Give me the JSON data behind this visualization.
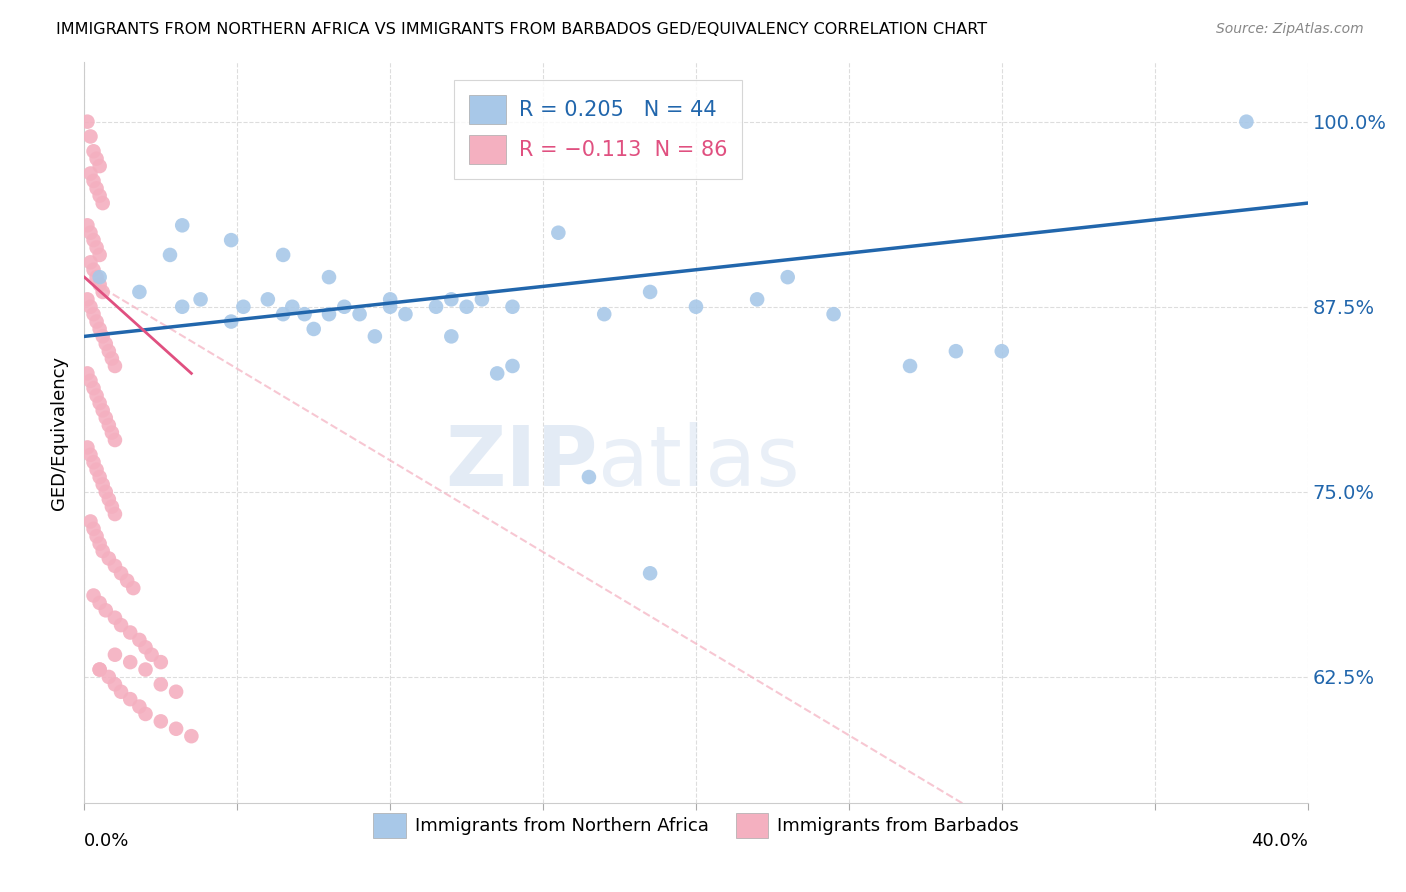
{
  "title": "IMMIGRANTS FROM NORTHERN AFRICA VS IMMIGRANTS FROM BARBADOS GED/EQUIVALENCY CORRELATION CHART",
  "source": "Source: ZipAtlas.com",
  "ylabel": "GED/Equivalency",
  "y_tick_labels": [
    "62.5%",
    "75.0%",
    "87.5%",
    "100.0%"
  ],
  "y_ticks": [
    0.625,
    0.75,
    0.875,
    1.0
  ],
  "xlim": [
    0.0,
    0.4
  ],
  "ylim": [
    0.54,
    1.04
  ],
  "blue_color": "#a8c8e8",
  "pink_color": "#f4b0c0",
  "blue_line_color": "#2166ac",
  "pink_line_color": "#e05080",
  "pink_dashed_color": "#f4b0c0",
  "watermark_zip": "ZIP",
  "watermark_atlas": "atlas",
  "blue_scatter_x": [
    0.38,
    0.005,
    0.018,
    0.028,
    0.032,
    0.038,
    0.048,
    0.052,
    0.06,
    0.065,
    0.068,
    0.072,
    0.075,
    0.08,
    0.085,
    0.09,
    0.095,
    0.1,
    0.105,
    0.115,
    0.12,
    0.125,
    0.13,
    0.135,
    0.14,
    0.155,
    0.17,
    0.185,
    0.2,
    0.22,
    0.23,
    0.245,
    0.27,
    0.285,
    0.3,
    0.032,
    0.048,
    0.065,
    0.08,
    0.1,
    0.12,
    0.14,
    0.165,
    0.185
  ],
  "blue_scatter_y": [
    1.0,
    0.895,
    0.885,
    0.91,
    0.875,
    0.88,
    0.865,
    0.875,
    0.88,
    0.87,
    0.875,
    0.87,
    0.86,
    0.87,
    0.875,
    0.87,
    0.855,
    0.88,
    0.87,
    0.875,
    0.88,
    0.875,
    0.88,
    0.83,
    0.875,
    0.925,
    0.87,
    0.885,
    0.875,
    0.88,
    0.895,
    0.87,
    0.835,
    0.845,
    0.845,
    0.93,
    0.92,
    0.91,
    0.895,
    0.875,
    0.855,
    0.835,
    0.76,
    0.695
  ],
  "pink_scatter_x": [
    0.001,
    0.002,
    0.003,
    0.004,
    0.005,
    0.002,
    0.003,
    0.004,
    0.005,
    0.006,
    0.001,
    0.002,
    0.003,
    0.004,
    0.005,
    0.002,
    0.003,
    0.004,
    0.005,
    0.006,
    0.001,
    0.002,
    0.003,
    0.004,
    0.005,
    0.006,
    0.007,
    0.008,
    0.009,
    0.01,
    0.001,
    0.002,
    0.003,
    0.004,
    0.005,
    0.006,
    0.007,
    0.008,
    0.009,
    0.01,
    0.001,
    0.002,
    0.003,
    0.004,
    0.005,
    0.006,
    0.007,
    0.008,
    0.009,
    0.01,
    0.002,
    0.003,
    0.004,
    0.005,
    0.006,
    0.008,
    0.01,
    0.012,
    0.014,
    0.016,
    0.003,
    0.005,
    0.007,
    0.01,
    0.012,
    0.015,
    0.018,
    0.02,
    0.022,
    0.025,
    0.005,
    0.008,
    0.01,
    0.012,
    0.015,
    0.018,
    0.02,
    0.025,
    0.03,
    0.035,
    0.005,
    0.01,
    0.015,
    0.02,
    0.025,
    0.03
  ],
  "pink_scatter_y": [
    1.0,
    0.99,
    0.98,
    0.975,
    0.97,
    0.965,
    0.96,
    0.955,
    0.95,
    0.945,
    0.93,
    0.925,
    0.92,
    0.915,
    0.91,
    0.905,
    0.9,
    0.895,
    0.89,
    0.885,
    0.88,
    0.875,
    0.87,
    0.865,
    0.86,
    0.855,
    0.85,
    0.845,
    0.84,
    0.835,
    0.83,
    0.825,
    0.82,
    0.815,
    0.81,
    0.805,
    0.8,
    0.795,
    0.79,
    0.785,
    0.78,
    0.775,
    0.77,
    0.765,
    0.76,
    0.755,
    0.75,
    0.745,
    0.74,
    0.735,
    0.73,
    0.725,
    0.72,
    0.715,
    0.71,
    0.705,
    0.7,
    0.695,
    0.69,
    0.685,
    0.68,
    0.675,
    0.67,
    0.665,
    0.66,
    0.655,
    0.65,
    0.645,
    0.64,
    0.635,
    0.63,
    0.625,
    0.62,
    0.615,
    0.61,
    0.605,
    0.6,
    0.595,
    0.59,
    0.585,
    0.63,
    0.64,
    0.635,
    0.63,
    0.62,
    0.615
  ],
  "blue_trend": [
    0.0,
    0.4,
    0.855,
    0.945
  ],
  "pink_solid_trend": [
    0.0,
    0.035,
    0.895,
    0.83
  ],
  "pink_dashed_trend": [
    0.0,
    0.4,
    0.895,
    0.4
  ]
}
